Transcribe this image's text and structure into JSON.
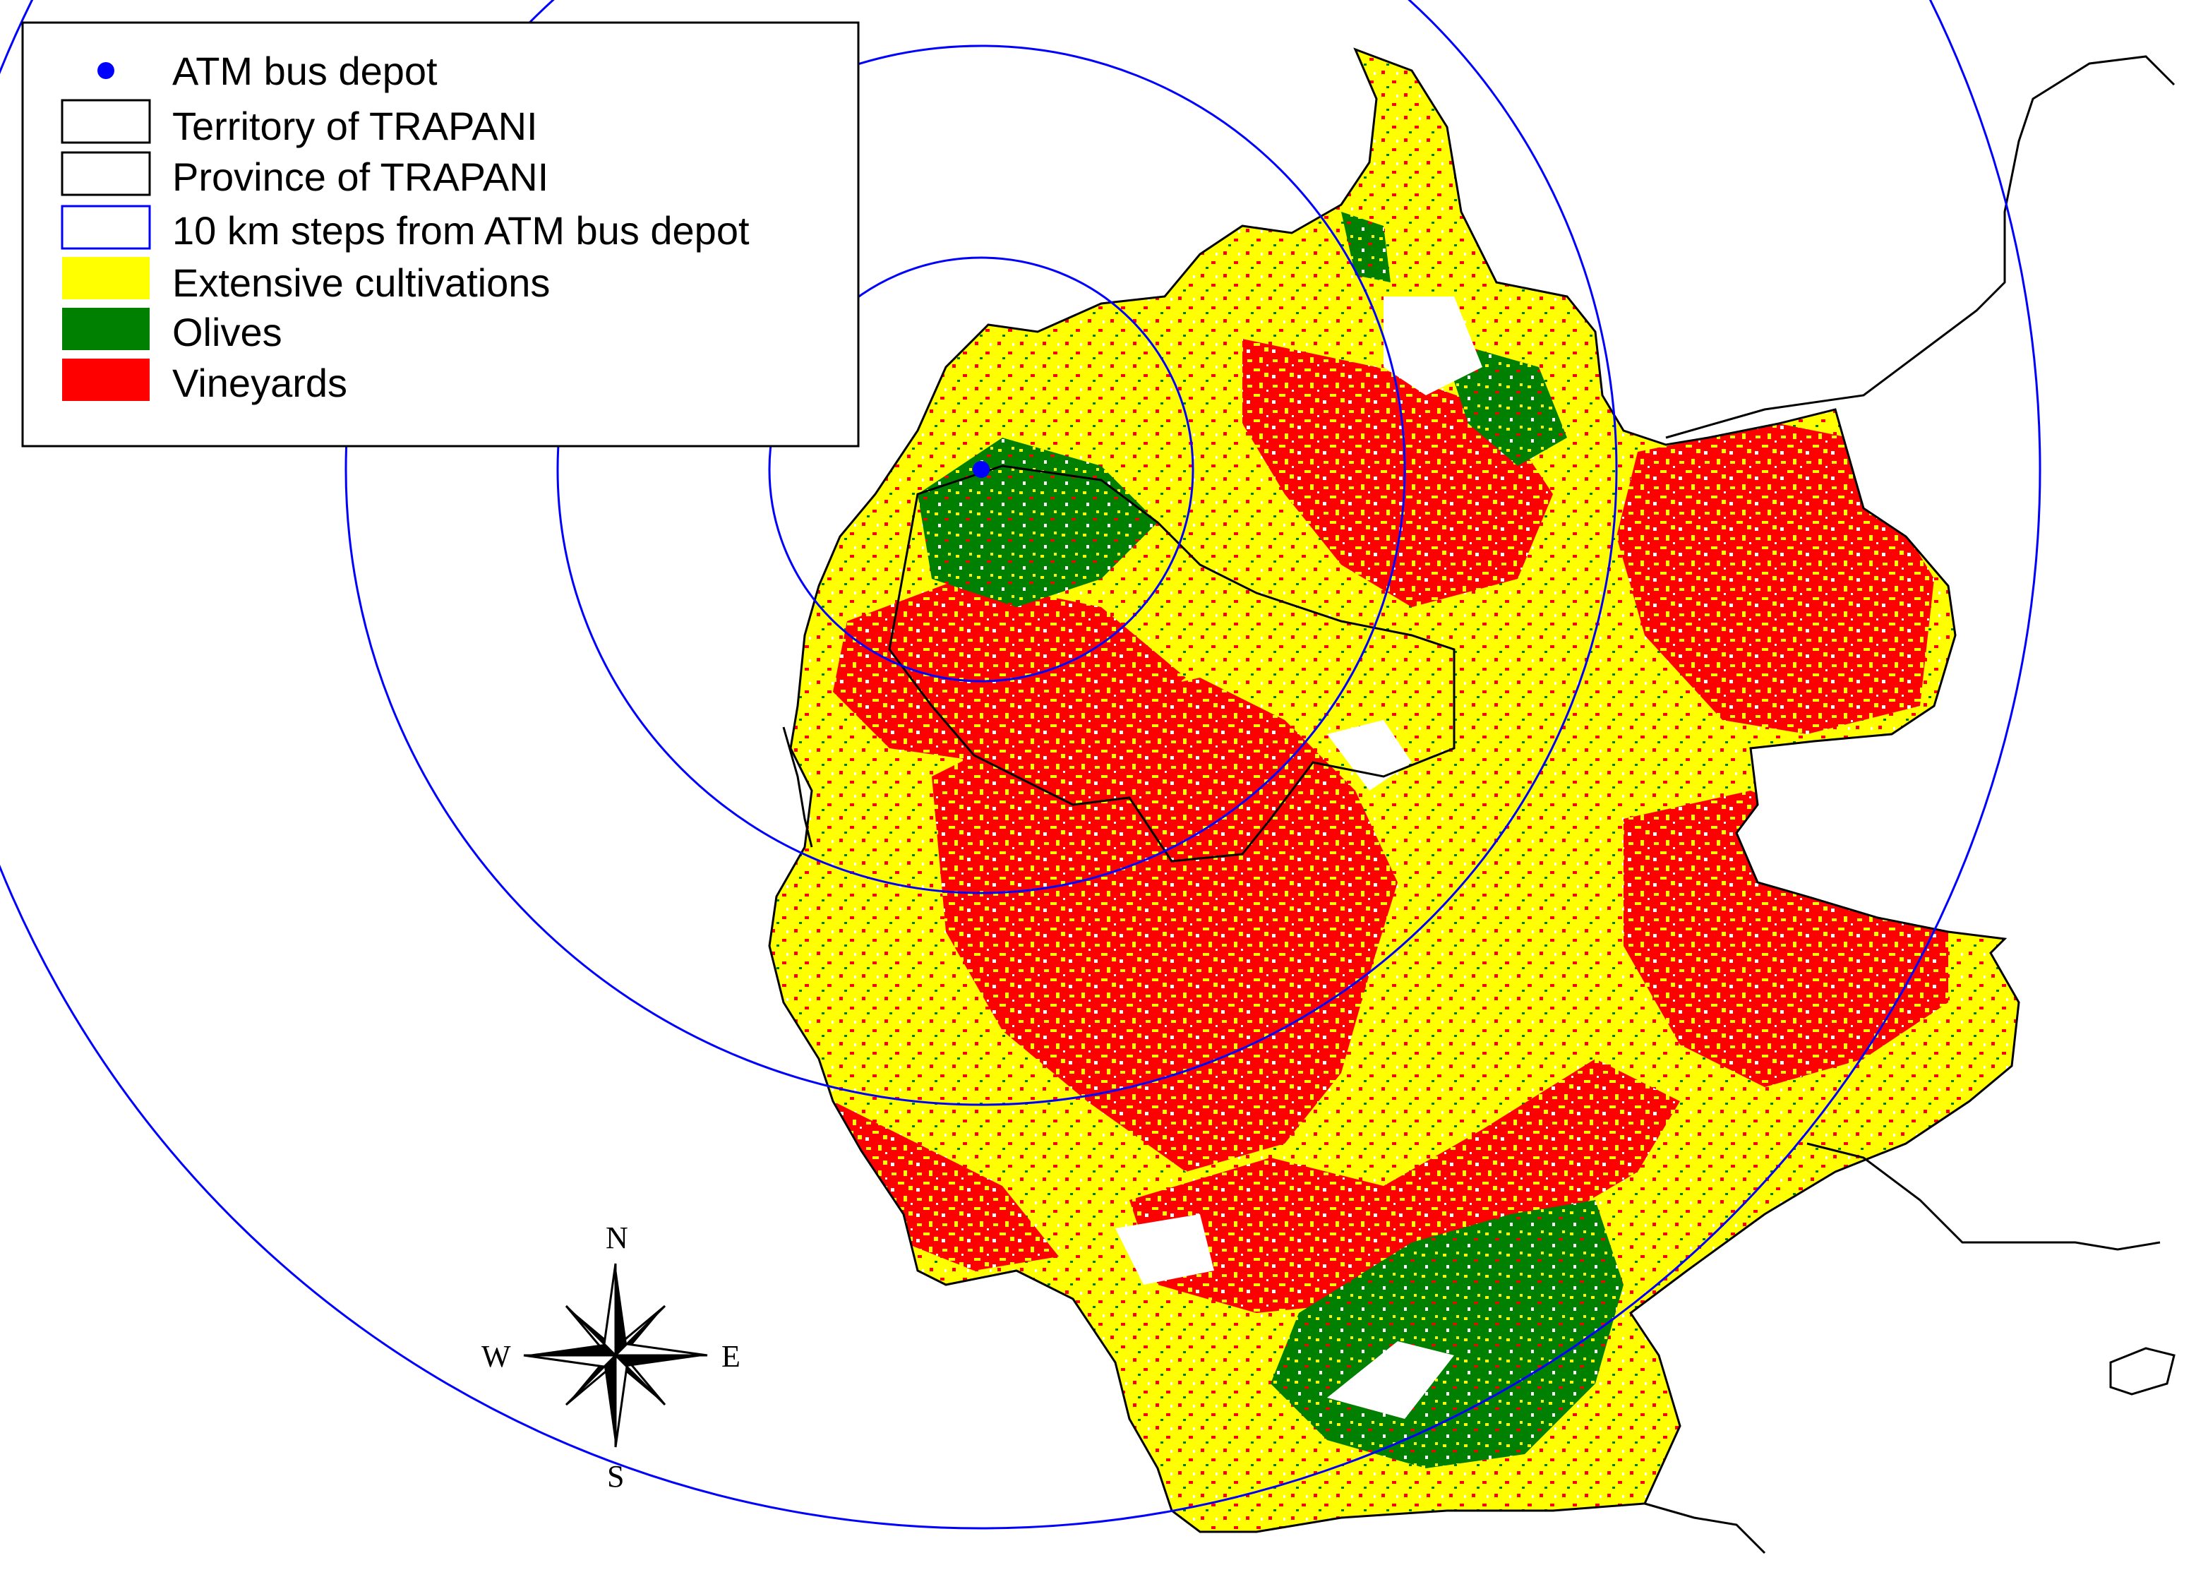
{
  "legend": {
    "items": [
      {
        "label": "ATM bus depot",
        "symbol": "dot",
        "color": "#0000ff"
      },
      {
        "label": "Territory of TRAPANI",
        "symbol": "box",
        "fill": "#ffffff",
        "stroke": "#000000"
      },
      {
        "label": "Province of TRAPANI",
        "symbol": "box",
        "fill": "#ffffff",
        "stroke": "#000000"
      },
      {
        "label": "10 km steps from ATM bus depot",
        "symbol": "box",
        "fill": "#ffffff",
        "stroke": "#0000ff"
      },
      {
        "label": "Extensive cultivations",
        "symbol": "box",
        "fill": "#ffff00",
        "stroke": "none"
      },
      {
        "label": "Olives",
        "symbol": "box",
        "fill": "#008000",
        "stroke": "none"
      },
      {
        "label": "Vineyards",
        "symbol": "box",
        "fill": "#ff0000",
        "stroke": "none"
      }
    ]
  },
  "compass": {
    "north": "N",
    "south": "S",
    "east": "E",
    "west": "W"
  },
  "colors": {
    "extensive": "#ffff00",
    "olives": "#008000",
    "vineyards": "#ff0000",
    "rings": "#0000ff",
    "depot": "#0000ff",
    "border": "#000000"
  }
}
